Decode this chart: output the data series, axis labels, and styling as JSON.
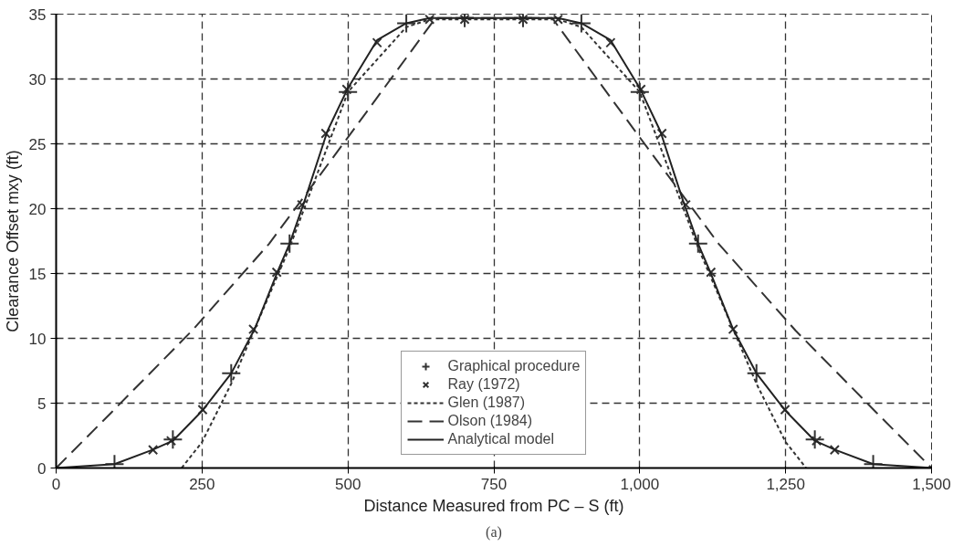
{
  "chart_data": {
    "type": "line",
    "xlabel": "Distance Measured from PC – S (ft)",
    "ylabel": "Clearance Offset mxy (ft)",
    "xlim": [
      0,
      1500
    ],
    "ylim": [
      0,
      35
    ],
    "xticks": [
      0,
      250,
      500,
      750,
      {
        "value": 1000,
        "label": "1,000"
      },
      {
        "value": 1250,
        "label": "1,250"
      },
      {
        "value": 1500,
        "label": "1,500"
      }
    ],
    "yticks": [
      0,
      5,
      10,
      15,
      20,
      25,
      30,
      35
    ],
    "grid": true,
    "legend": "bottom",
    "annotations": [
      "(a)"
    ],
    "series": [
      {
        "name": "Graphical procedure",
        "type": "scatter",
        "marker": "cross",
        "color": "#333333",
        "x": [
          100,
          200,
          300,
          400,
          500,
          600,
          700,
          800,
          900,
          1000,
          1100,
          1200,
          1300,
          1400
        ],
        "values": [
          0.3,
          2.2,
          7.3,
          17.3,
          29,
          34.3,
          34.7,
          34.7,
          34.3,
          29,
          17.3,
          7.3,
          2.2,
          0.3
        ]
      },
      {
        "name": "Ray (1972)",
        "type": "scatter",
        "marker": "x",
        "color": "#333333",
        "x": [
          166,
          197,
          251,
          338,
          378,
          421,
          462,
          498,
          550,
          640,
          700,
          800,
          860,
          950,
          1002,
          1038,
          1079,
          1122,
          1160,
          1249,
          1303,
          1334
        ],
        "values": [
          1.4,
          2.1,
          4.5,
          10.7,
          15.1,
          20.3,
          25.8,
          29.2,
          32.8,
          34.6,
          34.6,
          34.6,
          34.6,
          32.8,
          29.2,
          25.8,
          20.3,
          15.1,
          10.7,
          4.5,
          2.1,
          1.4
        ]
      },
      {
        "name": "Glen (1987)",
        "line_style": "dotted",
        "color": "#333333",
        "x": [
          215,
          250,
          300,
          400,
          500,
          600,
          640,
          860,
          900,
          1000,
          1100,
          1200,
          1250,
          1285
        ],
        "values": [
          0,
          2,
          6.5,
          17,
          29,
          34,
          34.6,
          34.6,
          34,
          29,
          17,
          6.5,
          2,
          0
        ]
      },
      {
        "name": "Olson (1984)",
        "line_style": "dashed",
        "color": "#333333",
        "x": [
          0,
          95,
          233,
          365,
          500,
          650,
          850,
          1000,
          1135,
          1267,
          1405,
          1500
        ],
        "values": [
          0,
          4.3,
          10.6,
          17.3,
          25.5,
          34.7,
          34.7,
          25.5,
          17.3,
          10.6,
          4.3,
          0
        ]
      },
      {
        "name": "Analytical model",
        "line_style": "solid",
        "color": "#222222",
        "x": [
          0,
          100,
          165,
          200,
          250,
          300,
          340,
          380,
          400,
          425,
          465,
          500,
          550,
          600,
          640,
          860,
          900,
          950,
          1000,
          1035,
          1075,
          1100,
          1120,
          1160,
          1200,
          1250,
          1300,
          1335,
          1400,
          1500
        ],
        "values": [
          0,
          0.3,
          1.4,
          2.1,
          4.4,
          7.3,
          10.7,
          15.2,
          17.3,
          20.5,
          26,
          29.3,
          33,
          34.3,
          34.7,
          34.7,
          34.3,
          33,
          29.3,
          26,
          20.5,
          17.3,
          15.2,
          10.7,
          7.3,
          4.4,
          2.1,
          1.4,
          0.3,
          0
        ]
      }
    ]
  }
}
